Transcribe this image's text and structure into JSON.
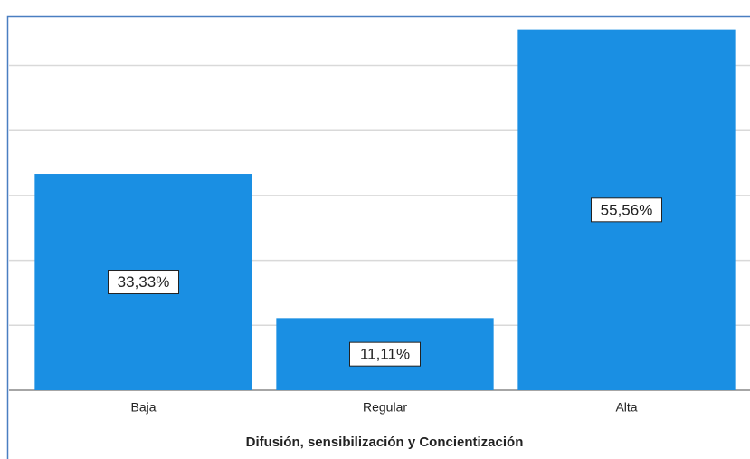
{
  "chart_data": {
    "type": "bar",
    "x_label": "Difusión, sensibilización y Concientización",
    "categories": [
      "Baja",
      "Regular",
      "Alta"
    ],
    "values": [
      33.33,
      11.11,
      55.56
    ],
    "value_labels": [
      "33,33%",
      "11,11%",
      "55,56%"
    ],
    "color": "#1a8fe3",
    "ylim": [
      0,
      57.6
    ],
    "yticks": [
      0,
      10,
      20,
      30,
      40,
      50
    ],
    "grid": true
  }
}
